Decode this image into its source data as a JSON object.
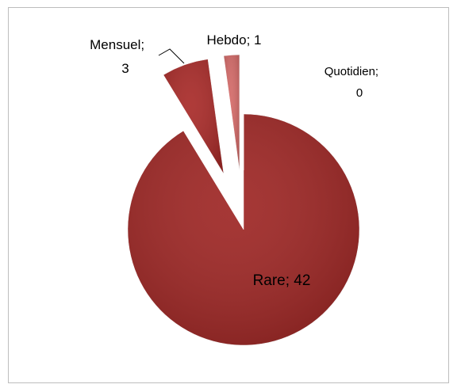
{
  "chart_data": {
    "type": "pie",
    "values": [
      42,
      3,
      1,
      0
    ],
    "value_labels": [
      "Rare; 42",
      "Mensuel; 3",
      "Hebdo; 1",
      "Quotidien; 0"
    ],
    "colors": [
      "#9e2624",
      "#a82a28",
      "#d46a68",
      "#c0504d"
    ]
  }
}
